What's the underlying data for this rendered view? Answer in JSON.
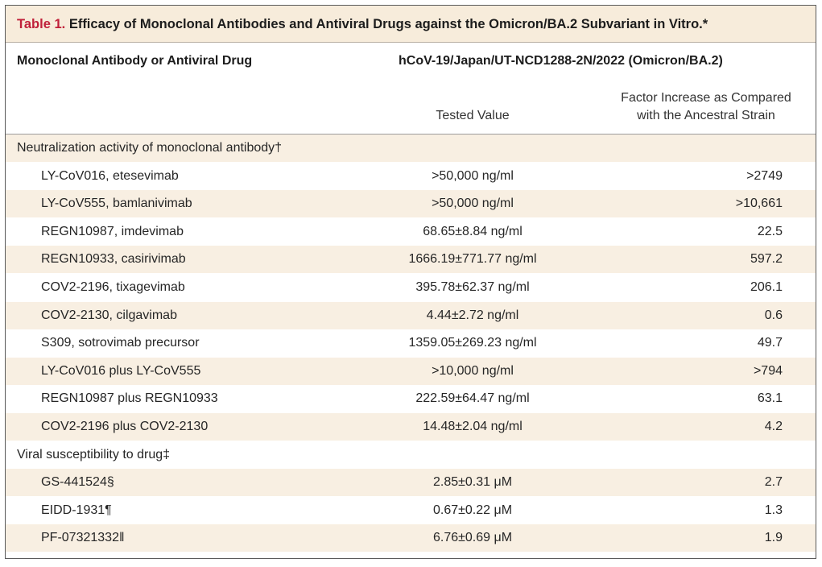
{
  "table": {
    "label": "Table 1.",
    "title": "Efficacy of Monoclonal Antibodies and Antiviral Drugs against the Omicron/BA.2 Subvariant in Vitro.*",
    "col_header_left": "Monoclonal Antibody or Antiviral Drug",
    "col_header_right": "hCoV-19/Japan/UT-NCD1288-2N/2022 (Omicron/BA.2)",
    "sub_tested_value": "Tested Value",
    "sub_factor_line1": "Factor Increase as Compared",
    "sub_factor_line2": "with the Ancestral Strain",
    "groups": [
      {
        "label": "Neutralization activity of monoclonal antibody†",
        "rows": [
          {
            "name": "LY-CoV016, etesevimab",
            "value": ">50,000 ng/ml",
            "factor": ">2749"
          },
          {
            "name": "LY-CoV555, bamlanivimab",
            "value": ">50,000 ng/ml",
            "factor": ">10,661"
          },
          {
            "name": "REGN10987, imdevimab",
            "value": "68.65±8.84 ng/ml",
            "factor": "22.5"
          },
          {
            "name": "REGN10933, casirivimab",
            "value": "1666.19±771.77 ng/ml",
            "factor": "597.2"
          },
          {
            "name": "COV2-2196, tixagevimab",
            "value": "395.78±62.37 ng/ml",
            "factor": "206.1"
          },
          {
            "name": "COV2-2130, cilgavimab",
            "value": "4.44±2.72 ng/ml",
            "factor": "0.6"
          },
          {
            "name": "S309, sotrovimab precursor",
            "value": "1359.05±269.23 ng/ml",
            "factor": "49.7"
          },
          {
            "name": "LY-CoV016 plus LY-CoV555",
            "value": ">10,000 ng/ml",
            "factor": ">794"
          },
          {
            "name": "REGN10987 plus REGN10933",
            "value": "222.59±64.47 ng/ml",
            "factor": "63.1"
          },
          {
            "name": "COV2-2196 plus COV2-2130",
            "value": "14.48±2.04 ng/ml",
            "factor": "4.2"
          }
        ]
      },
      {
        "label": "Viral susceptibility to drug‡",
        "rows": [
          {
            "name": "GS-441524§",
            "value": "2.85±0.31 μM",
            "factor": "2.7"
          },
          {
            "name": "EIDD-1931¶",
            "value": "0.67±0.22 μM",
            "factor": "1.3"
          },
          {
            "name": "PF-07321332‖",
            "value": "6.76±0.69 μM",
            "factor": "1.9"
          }
        ]
      }
    ]
  }
}
